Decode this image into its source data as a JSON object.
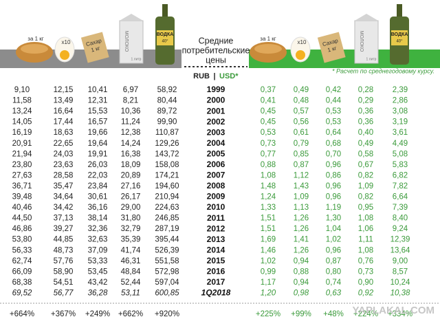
{
  "icons": {
    "bread": "за 1 кг",
    "eggs": "x10",
    "sugar_name": "Сахар",
    "sugar_weight": "1 кг",
    "milk": "МОЛОКО",
    "milk_volume": "1 литр",
    "vodka": "ВОДКА",
    "vodka_strength": "40°"
  },
  "title_lines": [
    "Средние",
    "потребительские",
    "цены"
  ],
  "currency": {
    "rub": "RUB",
    "separator": "|",
    "usd": "USD*"
  },
  "note": "* Расчет по среднегодовому курсу.",
  "rows": [
    {
      "period": "1999",
      "rub": [
        "9,10",
        "12,15",
        "10,41",
        "6,97",
        "58,92"
      ],
      "usd": [
        "0,37",
        "0,49",
        "0,42",
        "0,28",
        "2,39"
      ]
    },
    {
      "period": "2000",
      "rub": [
        "11,58",
        "13,49",
        "12,31",
        "8,21",
        "80,44"
      ],
      "usd": [
        "0,41",
        "0,48",
        "0,44",
        "0,29",
        "2,86"
      ]
    },
    {
      "period": "2001",
      "rub": [
        "13,24",
        "16,64",
        "15,53",
        "10,36",
        "89,72"
      ],
      "usd": [
        "0,45",
        "0,57",
        "0,53",
        "0,36",
        "3,08"
      ]
    },
    {
      "period": "2002",
      "rub": [
        "14,05",
        "17,44",
        "16,57",
        "11,24",
        "99,90"
      ],
      "usd": [
        "0,45",
        "0,56",
        "0,53",
        "0,36",
        "3,19"
      ]
    },
    {
      "period": "2003",
      "rub": [
        "16,19",
        "18,63",
        "19,66",
        "12,38",
        "110,87"
      ],
      "usd": [
        "0,53",
        "0,61",
        "0,64",
        "0,40",
        "3,61"
      ]
    },
    {
      "period": "2004",
      "rub": [
        "20,91",
        "22,65",
        "19,64",
        "14,24",
        "129,26"
      ],
      "usd": [
        "0,73",
        "0,79",
        "0,68",
        "0,49",
        "4,49"
      ]
    },
    {
      "period": "2005",
      "rub": [
        "21,94",
        "24,03",
        "19,91",
        "16,38",
        "143,72"
      ],
      "usd": [
        "0,77",
        "0,85",
        "0,70",
        "0,58",
        "5,08"
      ]
    },
    {
      "period": "2006",
      "rub": [
        "23,80",
        "23,63",
        "26,03",
        "18,09",
        "158,08"
      ],
      "usd": [
        "0,88",
        "0,87",
        "0,96",
        "0,67",
        "5,83"
      ]
    },
    {
      "period": "2007",
      "rub": [
        "27,63",
        "28,58",
        "22,03",
        "20,89",
        "174,21"
      ],
      "usd": [
        "1,08",
        "1,12",
        "0,86",
        "0,82",
        "6,82"
      ]
    },
    {
      "period": "2008",
      "rub": [
        "36,71",
        "35,47",
        "23,84",
        "27,16",
        "194,60"
      ],
      "usd": [
        "1,48",
        "1,43",
        "0,96",
        "1,09",
        "7,82"
      ]
    },
    {
      "period": "2009",
      "rub": [
        "39,48",
        "34,64",
        "30,61",
        "26,17",
        "210,94"
      ],
      "usd": [
        "1,24",
        "1,09",
        "0,96",
        "0,82",
        "6,64"
      ]
    },
    {
      "period": "2010",
      "rub": [
        "40,46",
        "34,42",
        "36,16",
        "29,00",
        "224,63"
      ],
      "usd": [
        "1,33",
        "1,13",
        "1,19",
        "0,95",
        "7,39"
      ]
    },
    {
      "period": "2011",
      "rub": [
        "44,50",
        "37,13",
        "38,14",
        "31,80",
        "246,85"
      ],
      "usd": [
        "1,51",
        "1,26",
        "1,30",
        "1,08",
        "8,40"
      ]
    },
    {
      "period": "2012",
      "rub": [
        "46,86",
        "39,27",
        "32,36",
        "32,79",
        "287,19"
      ],
      "usd": [
        "1,51",
        "1,26",
        "1,04",
        "1,06",
        "9,24"
      ]
    },
    {
      "period": "2013",
      "rub": [
        "53,80",
        "44,85",
        "32,63",
        "35,39",
        "395,44"
      ],
      "usd": [
        "1,69",
        "1,41",
        "1,02",
        "1,11",
        "12,39"
      ]
    },
    {
      "period": "2014",
      "rub": [
        "56,33",
        "48,73",
        "37,09",
        "41,74",
        "526,39"
      ],
      "usd": [
        "1,46",
        "1,26",
        "0,96",
        "1,08",
        "13,64"
      ]
    },
    {
      "period": "2015",
      "rub": [
        "62,74",
        "57,76",
        "53,33",
        "46,31",
        "551,58"
      ],
      "usd": [
        "1,02",
        "0,94",
        "0,87",
        "0,76",
        "9,00"
      ]
    },
    {
      "period": "2016",
      "rub": [
        "66,09",
        "58,90",
        "53,45",
        "48,84",
        "572,98"
      ],
      "usd": [
        "0,99",
        "0,88",
        "0,80",
        "0,73",
        "8,57"
      ]
    },
    {
      "period": "2017",
      "rub": [
        "68,38",
        "54,51",
        "43,42",
        "52,44",
        "597,04"
      ],
      "usd": [
        "1,17",
        "0,94",
        "0,74",
        "0,90",
        "10,24"
      ]
    },
    {
      "period": "1Q2018",
      "rub": [
        "69,52",
        "56,77",
        "36,28",
        "53,11",
        "600,85"
      ],
      "usd": [
        "1,20",
        "0,98",
        "0,63",
        "0,92",
        "10,38"
      ]
    }
  ],
  "totals": {
    "rub": [
      "+664%",
      "+367%",
      "+249%",
      "+662%",
      "+920%"
    ],
    "usd": [
      "+225%",
      "+99%",
      "+48%",
      "+224%",
      "+334%"
    ]
  },
  "watermark": "YAPLAKAL.COM"
}
